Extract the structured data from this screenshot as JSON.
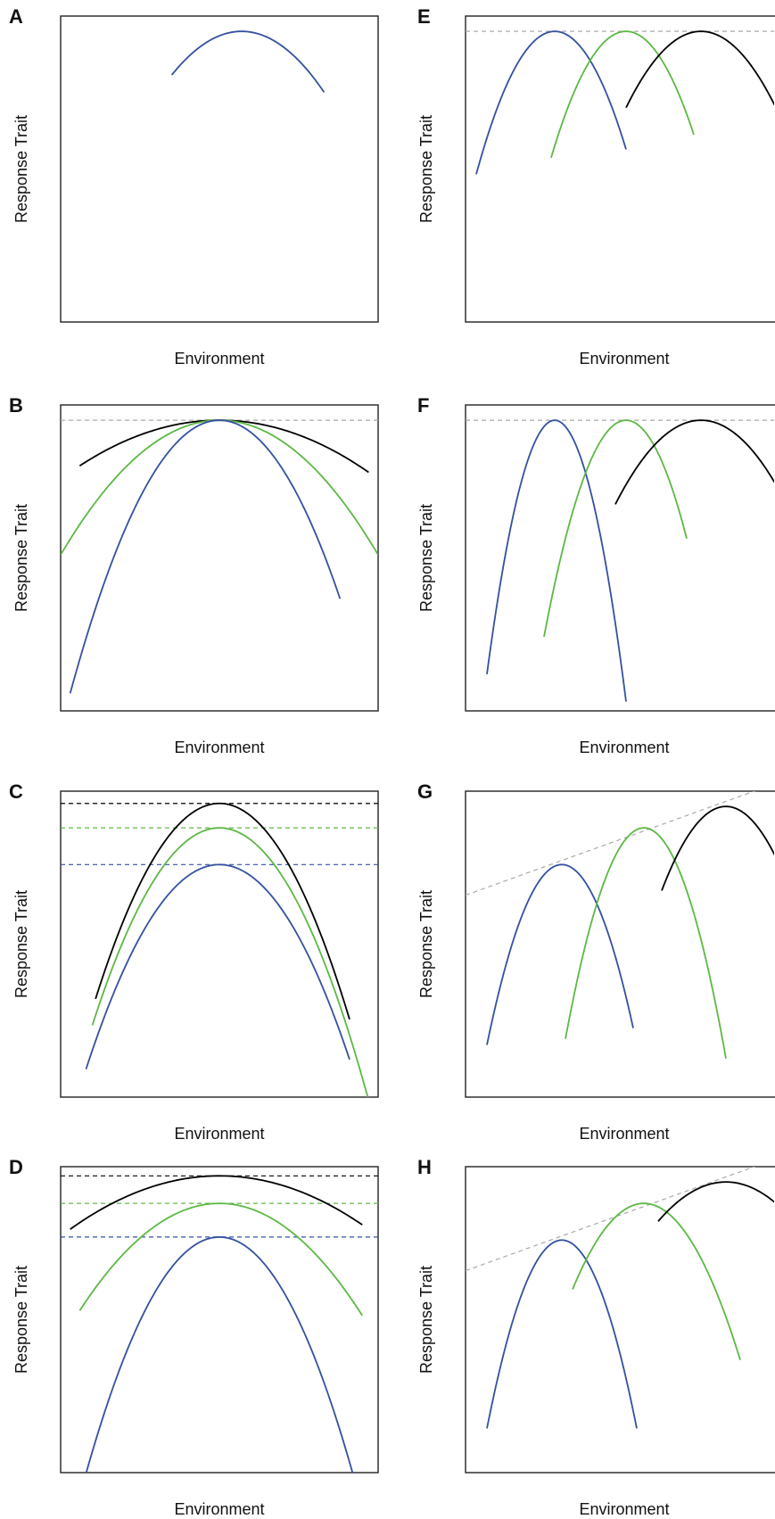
{
  "figure": {
    "x_axis_label": "Environment",
    "y_axis_label": "Response Trait"
  },
  "colors": {
    "blue": "#3450a0",
    "green": "#5cb844",
    "black": "#000000",
    "grey": "#aaaaaa"
  },
  "chart_data": [
    {
      "panel": "A",
      "type": "line",
      "xlabel": "Environment",
      "ylabel": "Response Trait",
      "xlim": [
        0,
        100
      ],
      "ylim": [
        0,
        100
      ],
      "series": [
        {
          "color": "blue",
          "peak_x": 57,
          "peak_y": 95,
          "curvature": 0.0295,
          "x_range": [
            35,
            83
          ]
        }
      ],
      "guides": []
    },
    {
      "panel": "B",
      "type": "line",
      "xlabel": "Environment",
      "ylabel": "Response Trait",
      "xlim": [
        0,
        100
      ],
      "ylim": [
        0,
        100
      ],
      "series": [
        {
          "color": "black",
          "peak_x": 50,
          "peak_y": 95,
          "curvature": 0.0077,
          "x_range": [
            6,
            97
          ]
        },
        {
          "color": "green",
          "peak_x": 50,
          "peak_y": 95,
          "curvature": 0.0176,
          "x_range": [
            0,
            100
          ]
        },
        {
          "color": "blue",
          "peak_x": 50,
          "peak_y": 95,
          "curvature": 0.0404,
          "x_range": [
            3,
            88
          ]
        }
      ],
      "guides": [
        {
          "color": "grey",
          "y0": 95,
          "y1": 95
        }
      ]
    },
    {
      "panel": "C",
      "type": "line",
      "xlabel": "Environment",
      "ylabel": "Response Trait",
      "xlim": [
        0,
        100
      ],
      "ylim": [
        0,
        100
      ],
      "series": [
        {
          "color": "black",
          "peak_x": 50,
          "peak_y": 96,
          "curvature": 0.042,
          "x_range": [
            11,
            91
          ]
        },
        {
          "color": "green",
          "peak_x": 50,
          "peak_y": 88,
          "curvature": 0.0403,
          "x_range": [
            10,
            100
          ]
        },
        {
          "color": "blue",
          "peak_x": 50,
          "peak_y": 76,
          "curvature": 0.0379,
          "x_range": [
            8,
            91
          ]
        }
      ],
      "guides": [
        {
          "color": "black",
          "y0": 96,
          "y1": 96
        },
        {
          "color": "green",
          "y0": 88,
          "y1": 88
        },
        {
          "color": "blue",
          "y0": 76,
          "y1": 76
        }
      ]
    },
    {
      "panel": "D",
      "type": "line",
      "xlabel": "Environment",
      "ylabel": "Response Trait",
      "xlim": [
        0,
        100
      ],
      "ylim": [
        0,
        100
      ],
      "series": [
        {
          "color": "black",
          "peak_x": 50,
          "peak_y": 97,
          "curvature": 0.0079,
          "x_range": [
            3,
            95
          ]
        },
        {
          "color": "green",
          "peak_x": 50,
          "peak_y": 88,
          "curvature": 0.0181,
          "x_range": [
            6,
            95
          ]
        },
        {
          "color": "blue",
          "peak_x": 50,
          "peak_y": 77,
          "curvature": 0.0438,
          "x_range": [
            8,
            92
          ]
        }
      ],
      "guides": [
        {
          "color": "black",
          "y0": 97,
          "y1": 97
        },
        {
          "color": "green",
          "y0": 88,
          "y1": 88
        },
        {
          "color": "blue",
          "y0": 77,
          "y1": 77
        }
      ]
    },
    {
      "panel": "E",
      "type": "line",
      "xlabel": "Environment",
      "ylabel": "Response Trait",
      "xlim": [
        0,
        100
      ],
      "ylim": [
        0,
        100
      ],
      "series": [
        {
          "color": "blue",
          "peak_x": 25,
          "peak_y": 95,
          "curvature": 0.0965,
          "x_range": [
            3,
            45
          ]
        },
        {
          "color": "green",
          "peak_x": 45,
          "peak_y": 95,
          "curvature": 0.0936,
          "x_range": [
            24,
            64
          ]
        },
        {
          "color": "black",
          "peak_x": 66,
          "peak_y": 95,
          "curvature": 0.0566,
          "x_range": [
            45,
            87
          ]
        }
      ],
      "guides": [
        {
          "color": "grey",
          "y0": 95,
          "y1": 95
        }
      ]
    },
    {
      "panel": "F",
      "type": "line",
      "xlabel": "Environment",
      "ylabel": "Response Trait",
      "xlim": [
        0,
        100
      ],
      "ylim": [
        0,
        100
      ],
      "series": [
        {
          "color": "blue",
          "peak_x": 25,
          "peak_y": 95,
          "curvature": 0.2299,
          "x_range": [
            6,
            45
          ]
        },
        {
          "color": "green",
          "peak_x": 45,
          "peak_y": 95,
          "curvature": 0.1338,
          "x_range": [
            22,
            62
          ]
        },
        {
          "color": "black",
          "peak_x": 66,
          "peak_y": 95,
          "curvature": 0.0477,
          "x_range": [
            42,
            90
          ]
        }
      ],
      "guides": [
        {
          "color": "grey",
          "y0": 95,
          "y1": 95
        }
      ]
    },
    {
      "panel": "G",
      "type": "line",
      "xlabel": "Environment",
      "ylabel": "Response Trait",
      "xlim": [
        0,
        100
      ],
      "ylim": [
        0,
        100
      ],
      "series": [
        {
          "color": "blue",
          "peak_x": 27,
          "peak_y": 76,
          "curvature": 0.1336,
          "x_range": [
            6,
            47
          ]
        },
        {
          "color": "green",
          "peak_x": 50,
          "peak_y": 88,
          "curvature": 0.1425,
          "x_range": [
            28,
            73
          ]
        },
        {
          "color": "black",
          "peak_x": 73,
          "peak_y": 95,
          "curvature": 0.0849,
          "x_range": [
            55,
            96
          ]
        }
      ],
      "guides": [
        {
          "color": "grey",
          "y0": 66,
          "y1": 108
        }
      ]
    },
    {
      "panel": "H",
      "type": "line",
      "xlabel": "Environment",
      "ylabel": "Response Trait",
      "xlim": [
        0,
        100
      ],
      "ylim": [
        0,
        100
      ],
      "series": [
        {
          "color": "blue",
          "peak_x": 27,
          "peak_y": 76,
          "curvature": 0.1396,
          "x_range": [
            6,
            48
          ]
        },
        {
          "color": "green",
          "peak_x": 50,
          "peak_y": 88,
          "curvature": 0.0702,
          "x_range": [
            30,
            77
          ]
        },
        {
          "color": "black",
          "peak_x": 73,
          "peak_y": 95,
          "curvature": 0.0356,
          "x_range": [
            54,
            96
          ]
        }
      ],
      "guides": [
        {
          "color": "grey",
          "y0": 66,
          "y1": 108
        }
      ]
    }
  ]
}
